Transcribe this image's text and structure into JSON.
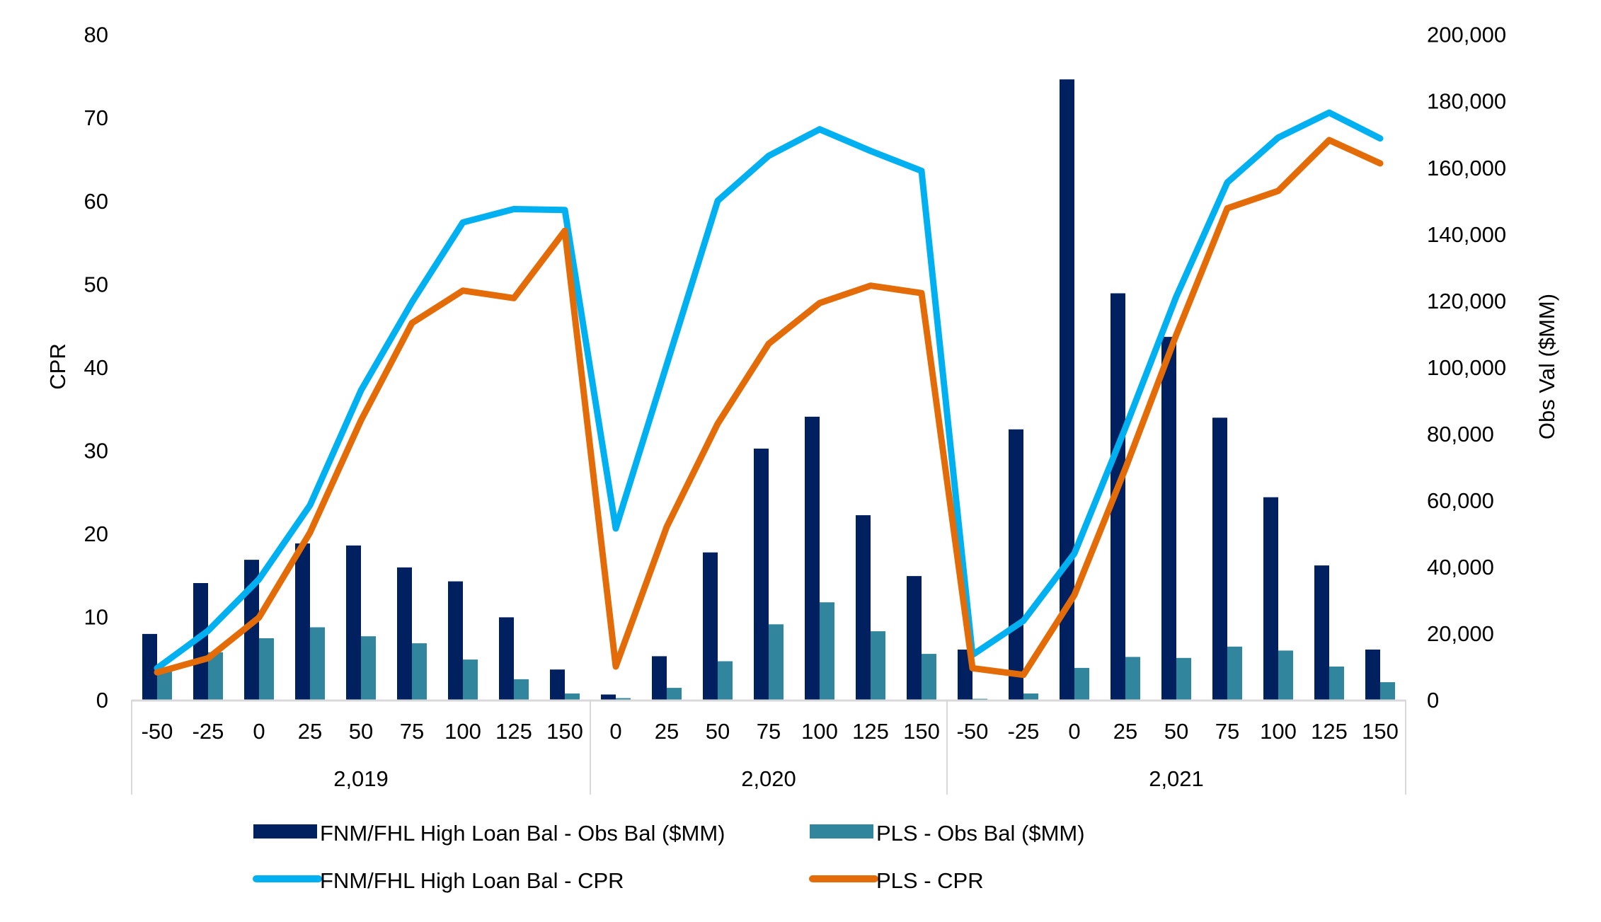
{
  "chart_data": {
    "type": "bar+line combo",
    "title": "",
    "groups": [
      {
        "label": "2,019",
        "categories": [
          "-50",
          "-25",
          "0",
          "25",
          "50",
          "75",
          "100",
          "125",
          "150"
        ]
      },
      {
        "label": "2,020",
        "categories": [
          "0",
          "25",
          "50",
          "75",
          "100",
          "125",
          "150"
        ]
      },
      {
        "label": "2,021",
        "categories": [
          "-50",
          "-25",
          "0",
          "25",
          "50",
          "75",
          "100",
          "125",
          "150"
        ]
      }
    ],
    "y_left": {
      "label": "CPR",
      "range": [
        0,
        80
      ],
      "ticks": [
        "0",
        "10",
        "20",
        "30",
        "40",
        "50",
        "60",
        "70",
        "80"
      ]
    },
    "y_right": {
      "label": "Obs Val ($MM)",
      "range": [
        0,
        200000
      ],
      "ticks": [
        "0",
        "20,000",
        "40,000",
        "60,000",
        "80,000",
        "100,000",
        "120,000",
        "140,000",
        "160,000",
        "180,000",
        "200,000"
      ]
    },
    "grid": false,
    "legend_position": "bottom",
    "series": [
      {
        "name": "FNM/FHL High Loan Bal - Obs Bal ($MM)",
        "kind": "bar",
        "axis": "right",
        "color": "#002060",
        "values": [
          19800,
          35100,
          42100,
          47000,
          46400,
          39800,
          35600,
          24800,
          9100,
          1600,
          13100,
          44300,
          75500,
          85100,
          55500,
          37200,
          15100,
          81300,
          186500,
          122200,
          109100,
          84800,
          60900,
          40400,
          15100
        ]
      },
      {
        "name": "PLS - Obs Bal ($MM)",
        "kind": "bar",
        "axis": "right",
        "color": "#31859C",
        "values": [
          8800,
          14300,
          18500,
          21800,
          19100,
          17000,
          12100,
          6200,
          1900,
          500,
          3600,
          11600,
          22700,
          29300,
          20600,
          13800,
          300,
          1900,
          9600,
          12900,
          12600,
          16000,
          14800,
          10000,
          5300
        ]
      },
      {
        "name": "FNM/FHL High Loan Bal - CPR",
        "kind": "line",
        "axis": "left",
        "color": "#00B0F0",
        "values": [
          3.8,
          8.3,
          14.5,
          23.4,
          37.2,
          47.8,
          57.4,
          59.0,
          58.9,
          20.6,
          40.3,
          60.0,
          65.4,
          68.6,
          66.0,
          63.6,
          5.4,
          9.5,
          17.6,
          32.7,
          48.5,
          62.2,
          67.6,
          70.6,
          67.5
        ]
      },
      {
        "name": "PLS - CPR",
        "kind": "line",
        "axis": "left",
        "color": "#E36C09",
        "values": [
          3.3,
          5.0,
          9.9,
          20.1,
          33.6,
          45.3,
          49.2,
          48.3,
          56.4,
          4.0,
          20.8,
          33.2,
          42.8,
          47.7,
          49.8,
          48.9,
          3.8,
          3.0,
          12.6,
          27.8,
          43.9,
          59.1,
          61.2,
          67.3,
          64.5
        ]
      }
    ]
  },
  "colors": {
    "axis_line": "#D9D9D9",
    "text": "#000000"
  }
}
